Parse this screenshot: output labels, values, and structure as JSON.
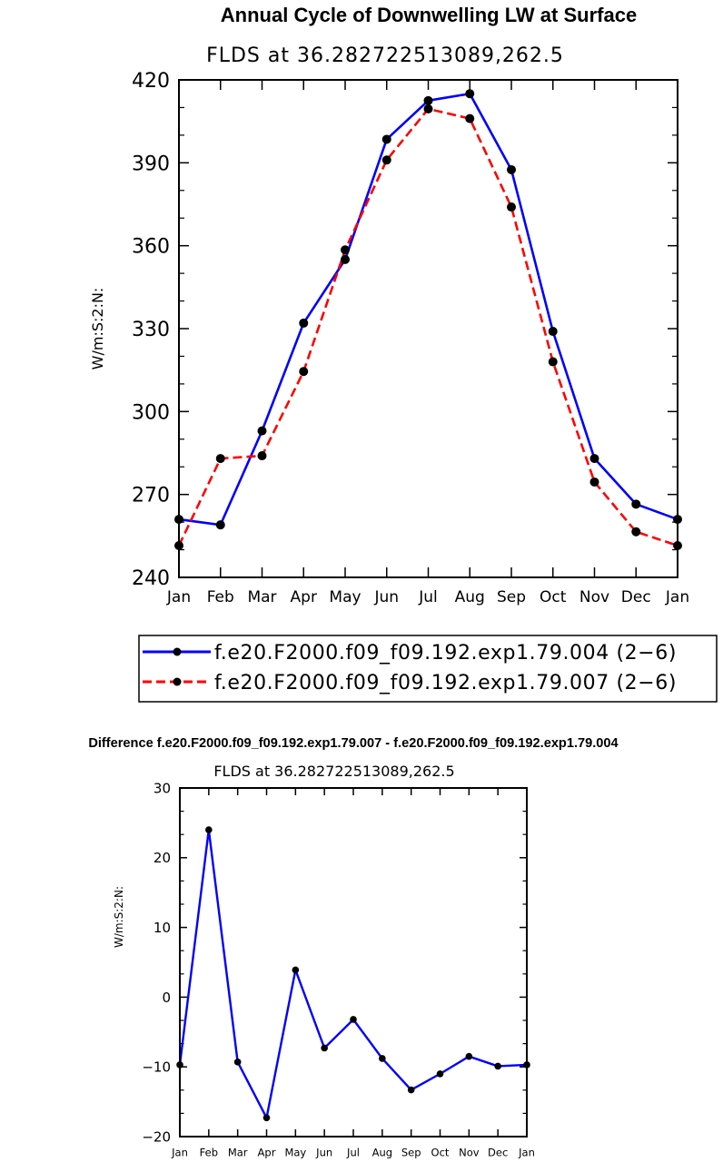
{
  "chart_data": [
    {
      "type": "line",
      "title": "Annual Cycle of Downwelling LW at Surface",
      "subtitle": "FLDS at 36.282722513089,262.5",
      "xlabel": "",
      "ylabel": "W/m:S:2:N:",
      "categories": [
        "Jan",
        "Feb",
        "Mar",
        "Apr",
        "May",
        "Jun",
        "Jul",
        "Aug",
        "Sep",
        "Oct",
        "Nov",
        "Dec",
        "Jan"
      ],
      "ylim": [
        240,
        420
      ],
      "yticks": [
        240,
        270,
        300,
        330,
        360,
        390,
        420
      ],
      "series": [
        {
          "name": "f.e20.F2000.f09_f09.192.exp1.79.004 (2−6)",
          "color": "#0000ff",
          "dash": "solid",
          "values": [
            261,
            259,
            293,
            332,
            355,
            398.5,
            412.5,
            415,
            387.5,
            329,
            283,
            266.5,
            261
          ]
        },
        {
          "name": "f.e20.F2000.f09_f09.192.exp1.79.007 (2−6)",
          "color": "#ff0000",
          "dash": "dashed",
          "values": [
            251.5,
            283,
            284,
            314.5,
            358.5,
            391,
            409.5,
            406,
            374,
            318,
            274.5,
            256.5,
            251.5
          ]
        }
      ]
    },
    {
      "type": "line",
      "title": "Difference f.e20.F2000.f09_f09.192.exp1.79.007 - f.e20.F2000.f09_f09.192.exp1.79.004",
      "subtitle": "FLDS at 36.282722513089,262.5",
      "xlabel": "",
      "ylabel": "W/m:S:2:N:",
      "categories": [
        "Jan",
        "Feb",
        "Mar",
        "Apr",
        "May",
        "Jun",
        "Jul",
        "Aug",
        "Sep",
        "Oct",
        "Nov",
        "Dec",
        "Jan"
      ],
      "ylim": [
        -20,
        30
      ],
      "yticks": [
        -20,
        -10,
        0,
        10,
        20,
        30
      ],
      "ytick_labels": [
        "−20",
        "−10",
        "0",
        "10",
        "20",
        "30"
      ],
      "series": [
        {
          "name": "difference",
          "color": "#0000ff",
          "dash": "solid",
          "values": [
            -9.7,
            24,
            -9.3,
            -17.3,
            3.9,
            -7.3,
            -3.2,
            -8.8,
            -13.3,
            -11,
            -8.5,
            -9.9,
            -9.7
          ]
        }
      ]
    }
  ]
}
